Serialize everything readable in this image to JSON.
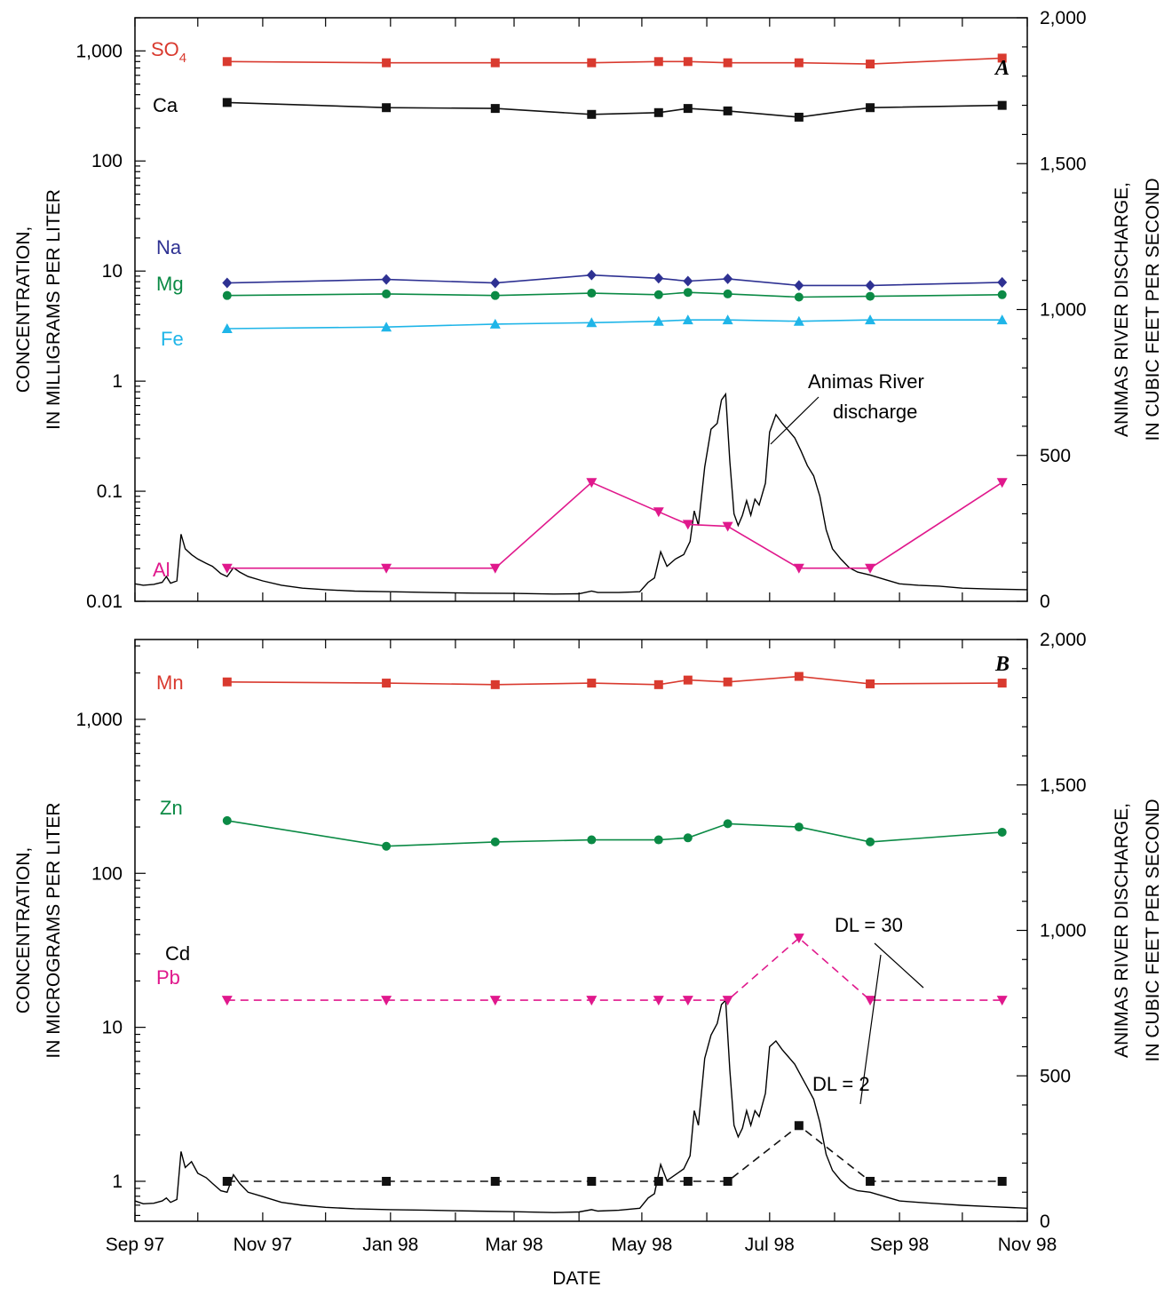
{
  "chart_data": [
    {
      "type": "line",
      "panel_label": "A",
      "xlabel": "",
      "ylabel": [
        "CONCENTRATION,",
        "IN MILLIGRAMS PER LITER"
      ],
      "y2label": [
        "ANIMAS RIVER DISCHARGE,",
        "IN CUBIC FEET PER SECOND"
      ],
      "y_scale": "log",
      "ylim": [
        0.01,
        2000
      ],
      "y_ticks": [
        {
          "v": 0.01,
          "label": "0.01"
        },
        {
          "v": 0.1,
          "label": "0.1"
        },
        {
          "v": 1,
          "label": "1"
        },
        {
          "v": 10,
          "label": "10"
        },
        {
          "v": 100,
          "label": "100"
        },
        {
          "v": 1000,
          "label": "1,000"
        }
      ],
      "y2lim": [
        0,
        2000
      ],
      "y2_ticks": [
        {
          "v": 0,
          "label": "0"
        },
        {
          "v": 500,
          "label": "500"
        },
        {
          "v": 1000,
          "label": "1,000"
        },
        {
          "v": 1500,
          "label": "1,500"
        },
        {
          "v": 2000,
          "label": "2,000"
        }
      ],
      "xlim": [
        "1997-09-01",
        "1998-11-01"
      ],
      "x_ticks": [],
      "sample_dates": [
        "1997-10-15",
        "1997-12-30",
        "1998-02-20",
        "1998-04-07",
        "1998-05-09",
        "1998-05-23",
        "1998-06-11",
        "1998-07-15",
        "1998-08-18",
        "1998-10-20"
      ],
      "series": [
        {
          "name": "SO4",
          "color": "#d93a2f",
          "marker": "square",
          "dash": false,
          "values": [
            800,
            780,
            780,
            780,
            800,
            800,
            780,
            780,
            760,
            860
          ]
        },
        {
          "name": "Ca",
          "color": "#111111",
          "marker": "square",
          "dash": false,
          "values": [
            340,
            305,
            300,
            265,
            275,
            300,
            285,
            250,
            305,
            320
          ]
        },
        {
          "name": "Na",
          "color": "#2e3192",
          "marker": "diamond",
          "dash": false,
          "values": [
            7.8,
            8.4,
            7.8,
            9.2,
            8.6,
            8.1,
            8.5,
            7.4,
            7.4,
            7.9
          ]
        },
        {
          "name": "Mg",
          "color": "#0b8a45",
          "marker": "circle",
          "dash": false,
          "values": [
            6.0,
            6.2,
            6.0,
            6.3,
            6.1,
            6.4,
            6.2,
            5.8,
            5.9,
            6.1
          ]
        },
        {
          "name": "Fe",
          "color": "#1fb5e8",
          "marker": "triangle-up",
          "dash": false,
          "values": [
            3.0,
            3.1,
            3.3,
            3.4,
            3.5,
            3.6,
            3.6,
            3.5,
            3.6,
            3.6
          ]
        },
        {
          "name": "Al",
          "color": "#e0188c",
          "marker": "triangle-down",
          "dash": false,
          "values": [
            0.02,
            0.02,
            0.02,
            0.12,
            0.065,
            0.05,
            0.048,
            0.02,
            0.02,
            0.12
          ]
        }
      ],
      "discharge": {
        "name": "Animas River discharge",
        "annotation": [
          "Animas River",
          "discharge"
        ],
        "points": [
          [
            "1997-09-01",
            60
          ],
          [
            "1997-09-05",
            55
          ],
          [
            "1997-09-10",
            58
          ],
          [
            "1997-09-14",
            65
          ],
          [
            "1997-09-16",
            85
          ],
          [
            "1997-09-18",
            62
          ],
          [
            "1997-09-21",
            70
          ],
          [
            "1997-09-23",
            230
          ],
          [
            "1997-09-25",
            180
          ],
          [
            "1997-09-28",
            160
          ],
          [
            "1997-10-01",
            145
          ],
          [
            "1997-10-05",
            130
          ],
          [
            "1997-10-08",
            120
          ],
          [
            "1997-10-12",
            95
          ],
          [
            "1997-10-15",
            85
          ],
          [
            "1997-10-18",
            115
          ],
          [
            "1997-10-21",
            100
          ],
          [
            "1997-10-25",
            85
          ],
          [
            "1997-11-01",
            70
          ],
          [
            "1997-11-10",
            55
          ],
          [
            "1997-11-20",
            45
          ],
          [
            "1997-12-01",
            40
          ],
          [
            "1997-12-15",
            35
          ],
          [
            "1998-01-01",
            33
          ],
          [
            "1998-01-20",
            30
          ],
          [
            "1998-02-10",
            28
          ],
          [
            "1998-03-01",
            27
          ],
          [
            "1998-03-20",
            25
          ],
          [
            "1998-04-01",
            26
          ],
          [
            "1998-04-07",
            35
          ],
          [
            "1998-04-10",
            30
          ],
          [
            "1998-04-20",
            30
          ],
          [
            "1998-04-30",
            33
          ],
          [
            "1998-05-04",
            65
          ],
          [
            "1998-05-07",
            80
          ],
          [
            "1998-05-10",
            170
          ],
          [
            "1998-05-13",
            120
          ],
          [
            "1998-05-17",
            145
          ],
          [
            "1998-05-21",
            160
          ],
          [
            "1998-05-24",
            205
          ],
          [
            "1998-05-26",
            310
          ],
          [
            "1998-05-28",
            260
          ],
          [
            "1998-05-31",
            460
          ],
          [
            "1998-06-03",
            590
          ],
          [
            "1998-06-06",
            610
          ],
          [
            "1998-06-08",
            690
          ],
          [
            "1998-06-10",
            710
          ],
          [
            "1998-06-12",
            480
          ],
          [
            "1998-06-14",
            300
          ],
          [
            "1998-06-16",
            260
          ],
          [
            "1998-06-18",
            295
          ],
          [
            "1998-06-20",
            345
          ],
          [
            "1998-06-22",
            295
          ],
          [
            "1998-06-24",
            350
          ],
          [
            "1998-06-26",
            330
          ],
          [
            "1998-06-29",
            405
          ],
          [
            "1998-07-01",
            580
          ],
          [
            "1998-07-04",
            640
          ],
          [
            "1998-07-07",
            610
          ],
          [
            "1998-07-10",
            585
          ],
          [
            "1998-07-13",
            560
          ],
          [
            "1998-07-16",
            515
          ],
          [
            "1998-07-19",
            465
          ],
          [
            "1998-07-22",
            430
          ],
          [
            "1998-07-25",
            360
          ],
          [
            "1998-07-28",
            245
          ],
          [
            "1998-07-31",
            180
          ],
          [
            "1998-08-04",
            145
          ],
          [
            "1998-08-08",
            115
          ],
          [
            "1998-08-12",
            100
          ],
          [
            "1998-08-18",
            90
          ],
          [
            "1998-08-25",
            75
          ],
          [
            "1998-09-01",
            60
          ],
          [
            "1998-09-10",
            55
          ],
          [
            "1998-09-20",
            52
          ],
          [
            "1998-10-01",
            45
          ],
          [
            "1998-10-15",
            42
          ],
          [
            "1998-11-01",
            40
          ]
        ]
      }
    },
    {
      "type": "line",
      "panel_label": "B",
      "xlabel": "DATE",
      "ylabel": [
        "CONCENTRATION,",
        "IN MICROGRAMS PER LITER"
      ],
      "y2label": [
        "ANIMAS RIVER DISCHARGE,",
        "IN CUBIC FEET PER SECOND"
      ],
      "y_scale": "log",
      "ylim": [
        0.55,
        3300
      ],
      "y_ticks": [
        {
          "v": 1,
          "label": "1"
        },
        {
          "v": 10,
          "label": "10"
        },
        {
          "v": 100,
          "label": "100"
        },
        {
          "v": 1000,
          "label": "1,000"
        }
      ],
      "y2lim": [
        0,
        2000
      ],
      "y2_ticks": [
        {
          "v": 0,
          "label": "0"
        },
        {
          "v": 500,
          "label": "500"
        },
        {
          "v": 1000,
          "label": "1,000"
        },
        {
          "v": 1500,
          "label": "1,500"
        },
        {
          "v": 2000,
          "label": "2,000"
        }
      ],
      "xlim": [
        "1997-09-01",
        "1998-11-01"
      ],
      "x_ticks": [
        {
          "v": "1997-09-01",
          "label": "Sep 97"
        },
        {
          "v": "1997-11-01",
          "label": "Nov 97"
        },
        {
          "v": "1998-01-01",
          "label": "Jan 98"
        },
        {
          "v": "1998-03-01",
          "label": "Mar 98"
        },
        {
          "v": "1998-05-01",
          "label": "May 98"
        },
        {
          "v": "1998-07-01",
          "label": "Jul 98"
        },
        {
          "v": "1998-09-01",
          "label": "Sep 98"
        },
        {
          "v": "1998-11-01",
          "label": "Nov 98"
        }
      ],
      "sample_dates": [
        "1997-10-15",
        "1997-12-30",
        "1998-02-20",
        "1998-04-07",
        "1998-05-09",
        "1998-05-23",
        "1998-06-11",
        "1998-07-15",
        "1998-08-18",
        "1998-10-20"
      ],
      "series": [
        {
          "name": "Mn",
          "color": "#d93a2f",
          "marker": "square",
          "dash": false,
          "values": [
            1750,
            1720,
            1680,
            1720,
            1680,
            1800,
            1750,
            1900,
            1700,
            1720
          ]
        },
        {
          "name": "Zn",
          "color": "#0b8a45",
          "marker": "circle",
          "dash": false,
          "values": [
            220,
            150,
            160,
            165,
            165,
            170,
            210,
            200,
            160,
            185
          ]
        },
        {
          "name": "Pb",
          "color": "#e0188c",
          "marker": "triangle-down",
          "dash": true,
          "values": [
            15,
            15,
            15,
            15,
            15,
            15,
            15,
            38,
            15,
            15
          ]
        },
        {
          "name": "Cd",
          "color": "#111111",
          "marker": "square",
          "dash": true,
          "values": [
            1,
            1,
            1,
            1,
            1,
            1,
            1,
            2.3,
            1,
            1
          ]
        }
      ],
      "annotations": [
        "DL = 30",
        "DL = 2"
      ],
      "discharge": {
        "name": "Animas River discharge",
        "points": [
          [
            "1997-09-01",
            70
          ],
          [
            "1997-09-05",
            60
          ],
          [
            "1997-09-10",
            62
          ],
          [
            "1997-09-14",
            70
          ],
          [
            "1997-09-16",
            80
          ],
          [
            "1997-09-18",
            65
          ],
          [
            "1997-09-21",
            75
          ],
          [
            "1997-09-23",
            240
          ],
          [
            "1997-09-25",
            185
          ],
          [
            "1997-09-28",
            205
          ],
          [
            "1997-10-01",
            165
          ],
          [
            "1997-10-05",
            150
          ],
          [
            "1997-10-08",
            130
          ],
          [
            "1997-10-12",
            105
          ],
          [
            "1997-10-15",
            100
          ],
          [
            "1997-10-18",
            160
          ],
          [
            "1997-10-21",
            130
          ],
          [
            "1997-10-25",
            100
          ],
          [
            "1997-11-01",
            85
          ],
          [
            "1997-11-10",
            65
          ],
          [
            "1997-11-20",
            55
          ],
          [
            "1997-12-01",
            48
          ],
          [
            "1997-12-15",
            43
          ],
          [
            "1998-01-01",
            40
          ],
          [
            "1998-01-20",
            38
          ],
          [
            "1998-02-10",
            35
          ],
          [
            "1998-03-01",
            33
          ],
          [
            "1998-03-20",
            30
          ],
          [
            "1998-04-01",
            32
          ],
          [
            "1998-04-07",
            40
          ],
          [
            "1998-04-10",
            35
          ],
          [
            "1998-04-20",
            38
          ],
          [
            "1998-04-30",
            45
          ],
          [
            "1998-05-04",
            80
          ],
          [
            "1998-05-07",
            95
          ],
          [
            "1998-05-10",
            195
          ],
          [
            "1998-05-13",
            140
          ],
          [
            "1998-05-17",
            160
          ],
          [
            "1998-05-21",
            180
          ],
          [
            "1998-05-24",
            225
          ],
          [
            "1998-05-26",
            380
          ],
          [
            "1998-05-28",
            330
          ],
          [
            "1998-05-31",
            560
          ],
          [
            "1998-06-03",
            640
          ],
          [
            "1998-06-06",
            680
          ],
          [
            "1998-06-08",
            745
          ],
          [
            "1998-06-10",
            760
          ],
          [
            "1998-06-12",
            520
          ],
          [
            "1998-06-14",
            330
          ],
          [
            "1998-06-16",
            290
          ],
          [
            "1998-06-18",
            320
          ],
          [
            "1998-06-20",
            380
          ],
          [
            "1998-06-22",
            330
          ],
          [
            "1998-06-24",
            380
          ],
          [
            "1998-06-26",
            360
          ],
          [
            "1998-06-29",
            440
          ],
          [
            "1998-07-01",
            600
          ],
          [
            "1998-07-04",
            620
          ],
          [
            "1998-07-07",
            590
          ],
          [
            "1998-07-10",
            565
          ],
          [
            "1998-07-13",
            540
          ],
          [
            "1998-07-16",
            500
          ],
          [
            "1998-07-19",
            460
          ],
          [
            "1998-07-22",
            420
          ],
          [
            "1998-07-25",
            340
          ],
          [
            "1998-07-28",
            230
          ],
          [
            "1998-07-31",
            175
          ],
          [
            "1998-08-04",
            140
          ],
          [
            "1998-08-08",
            115
          ],
          [
            "1998-08-12",
            105
          ],
          [
            "1998-08-18",
            100
          ],
          [
            "1998-08-25",
            85
          ],
          [
            "1998-09-01",
            70
          ],
          [
            "1998-09-10",
            65
          ],
          [
            "1998-09-20",
            60
          ],
          [
            "1998-10-01",
            55
          ],
          [
            "1998-10-15",
            50
          ],
          [
            "1998-11-01",
            45
          ]
        ]
      }
    }
  ]
}
